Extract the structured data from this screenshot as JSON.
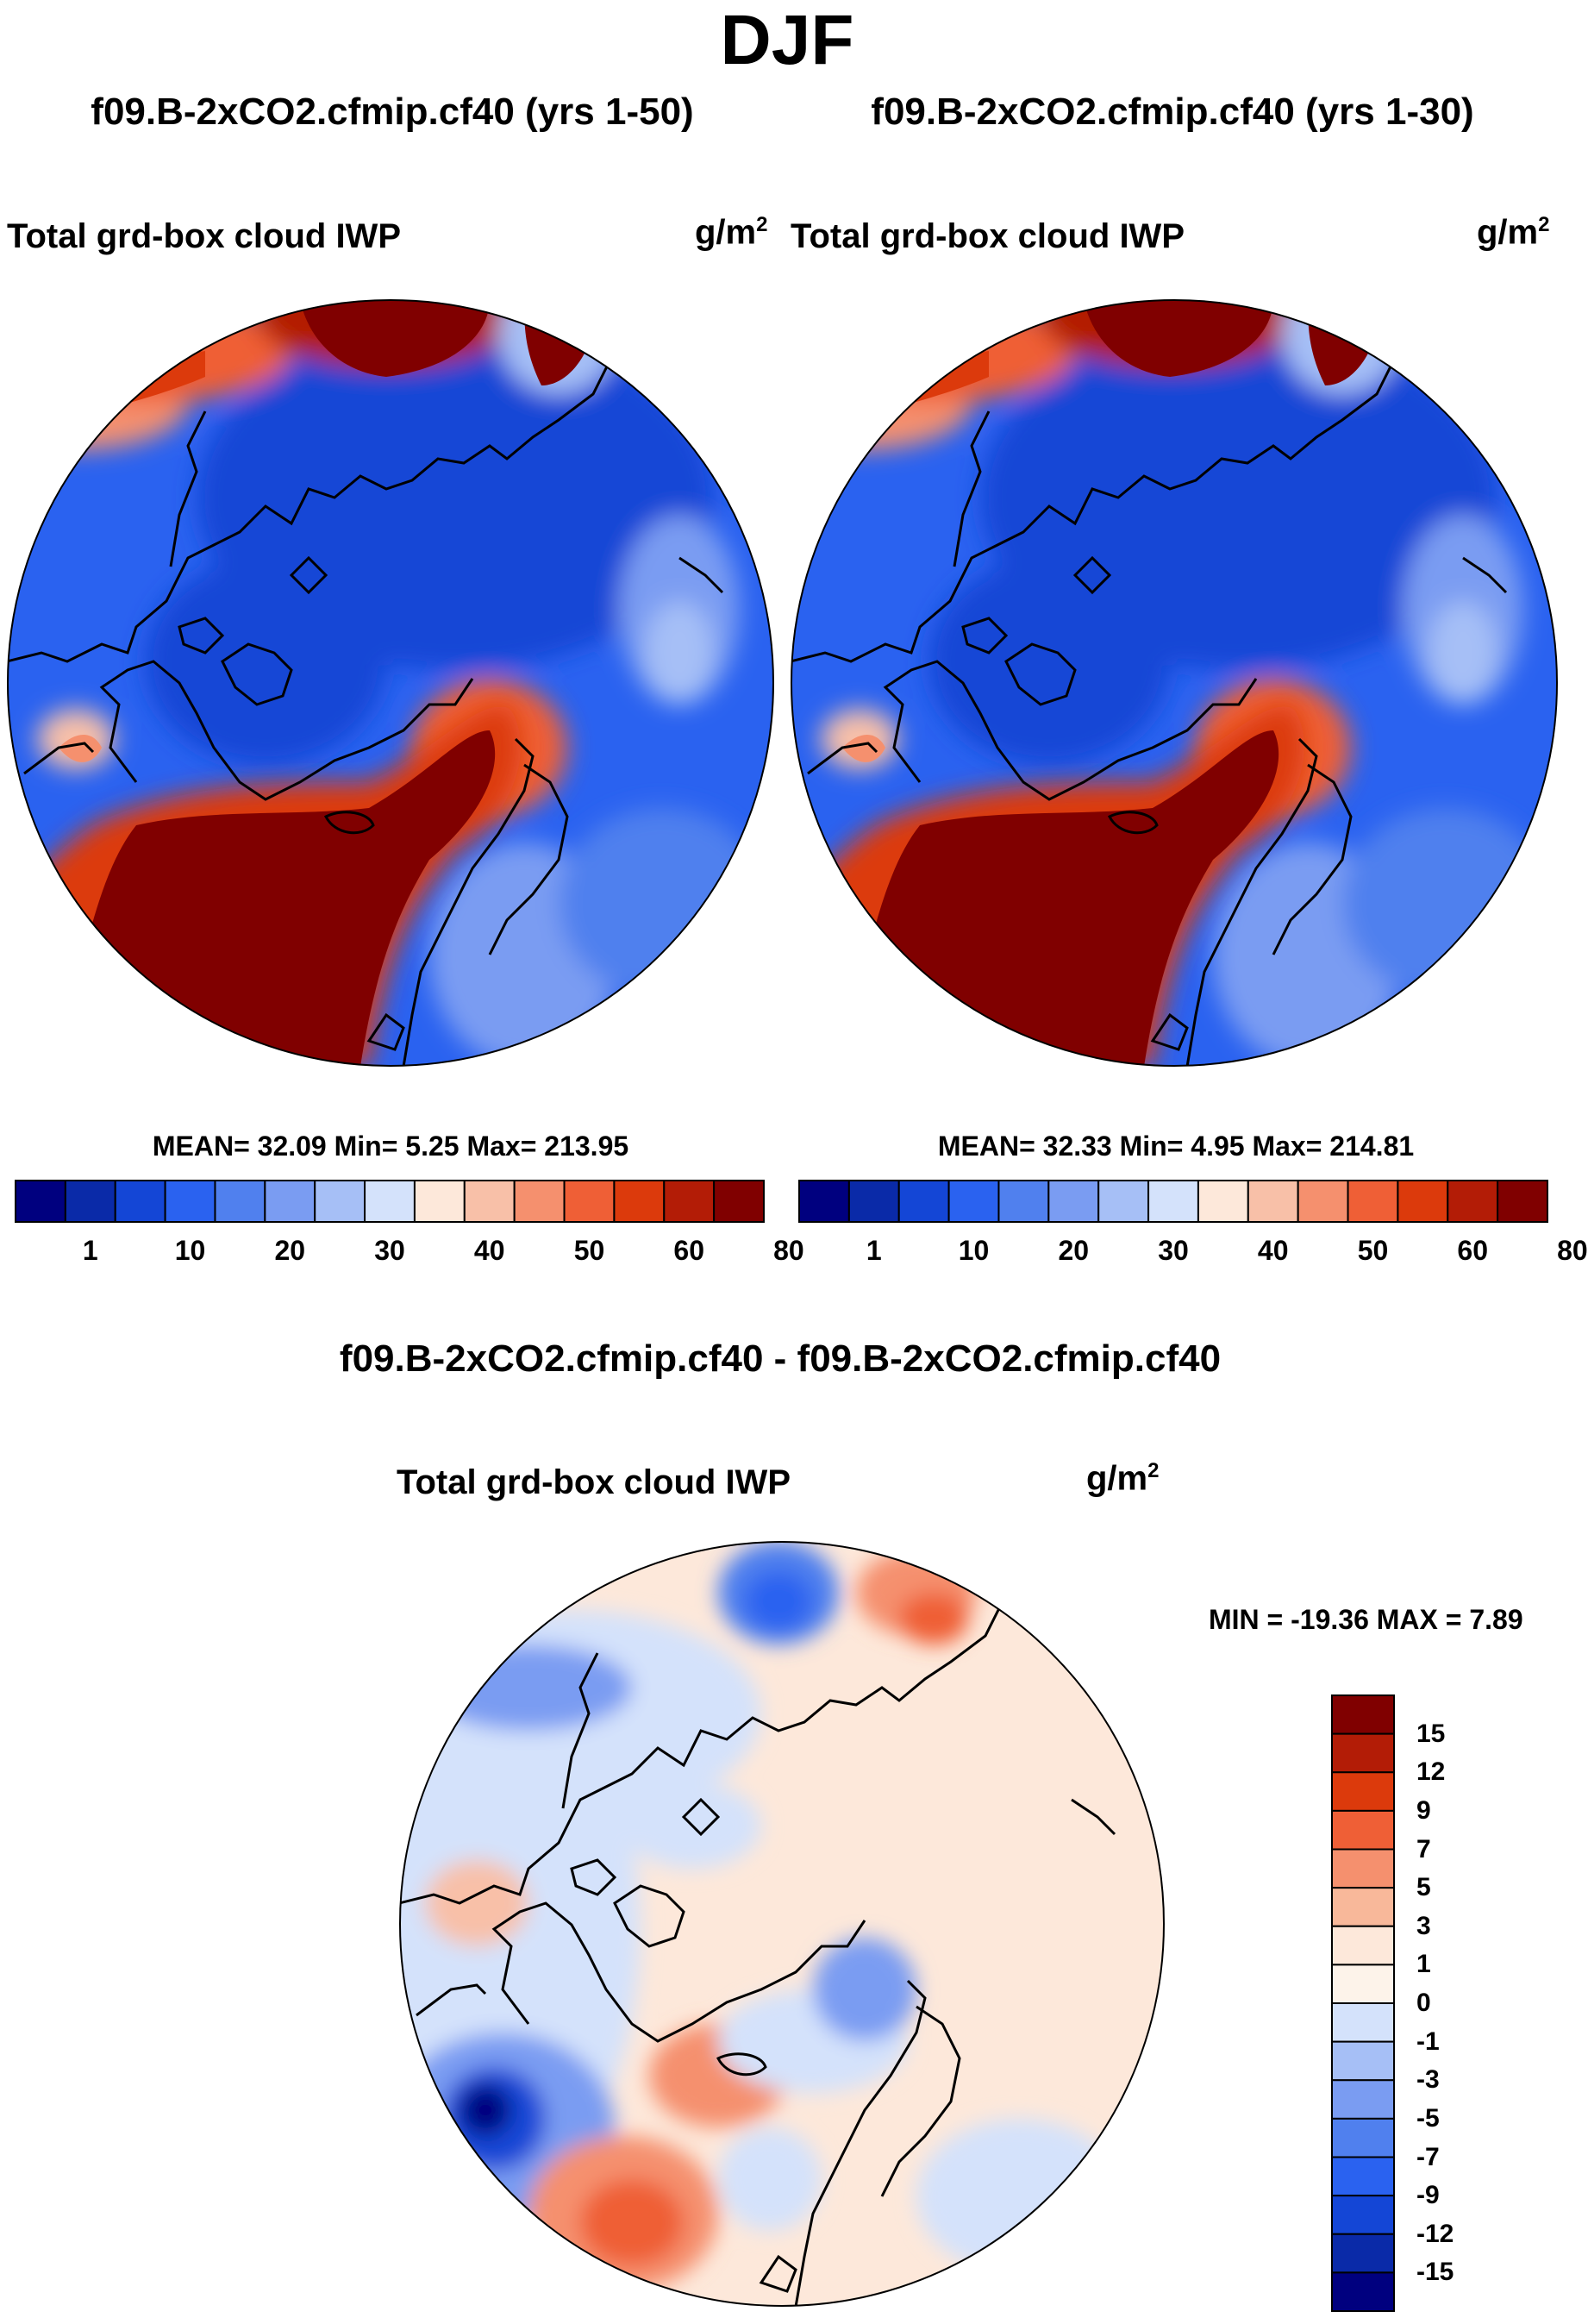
{
  "title": "DJF",
  "panels": [
    {
      "case_title": "f09.B-2xCO2.cfmip.cf40 (yrs 1-50)",
      "variable": "Total grd-box cloud IWP",
      "units_base": "g/m",
      "units_exp": "2",
      "stats": "MEAN=  32.09  Min=    5.25  Max= 213.95"
    },
    {
      "case_title": "f09.B-2xCO2.cfmip.cf40 (yrs 1-30)",
      "variable": "Total grd-box cloud IWP",
      "units_base": "g/m",
      "units_exp": "2",
      "stats": "MEAN=  32.33  Min=    4.95  Max= 214.81"
    }
  ],
  "diff_panel": {
    "case_title": "f09.B-2xCO2.cfmip.cf40 - f09.B-2xCO2.cfmip.cf40",
    "variable": "Total grd-box cloud IWP",
    "units_base": "g/m",
    "units_exp": "2",
    "stats": "MIN = -19.36 MAX =    7.89"
  },
  "chart_data": [
    {
      "type": "heatmap",
      "projection": "north polar stereographic",
      "title": "f09.B-2xCO2.cfmip.cf40 (yrs 1-50)",
      "subtitle": "Total grd-box cloud IWP",
      "units": "g/m^2",
      "mean": 32.09,
      "min": 5.25,
      "max": 213.95,
      "colorbar": {
        "orientation": "horizontal",
        "tick_labels": [
          "1",
          "10",
          "20",
          "30",
          "40",
          "50",
          "60",
          "80"
        ],
        "colors": [
          "#00007f",
          "#0a2aa8",
          "#1446d6",
          "#2a62f0",
          "#5080ee",
          "#7a9cf2",
          "#a6bff6",
          "#d4e2fb",
          "#fde8da",
          "#f8c0a8",
          "#f5906e",
          "#ef5f36",
          "#dc3a0c",
          "#b31c06",
          "#800000"
        ]
      }
    },
    {
      "type": "heatmap",
      "projection": "north polar stereographic",
      "title": "f09.B-2xCO2.cfmip.cf40 (yrs 1-30)",
      "subtitle": "Total grd-box cloud IWP",
      "units": "g/m^2",
      "mean": 32.33,
      "min": 4.95,
      "max": 214.81,
      "colorbar": {
        "orientation": "horizontal",
        "tick_labels": [
          "1",
          "10",
          "20",
          "30",
          "40",
          "50",
          "60",
          "80"
        ],
        "colors": [
          "#00007f",
          "#0a2aa8",
          "#1446d6",
          "#2a62f0",
          "#5080ee",
          "#7a9cf2",
          "#a6bff6",
          "#d4e2fb",
          "#fde8da",
          "#f8c0a8",
          "#f5906e",
          "#ef5f36",
          "#dc3a0c",
          "#b31c06",
          "#800000"
        ]
      }
    },
    {
      "type": "heatmap",
      "projection": "north polar stereographic",
      "title": "f09.B-2xCO2.cfmip.cf40 - f09.B-2xCO2.cfmip.cf40",
      "subtitle": "Total grd-box cloud IWP",
      "units": "g/m^2",
      "min": -19.36,
      "max": 7.89,
      "colorbar": {
        "orientation": "vertical",
        "tick_labels": [
          "15",
          "12",
          "9",
          "7",
          "5",
          "3",
          "1",
          "0",
          "-1",
          "-3",
          "-5",
          "-7",
          "-9",
          "-12",
          "-15"
        ],
        "colors": [
          "#800000",
          "#b31c06",
          "#dc3a0c",
          "#ef5f36",
          "#f5906e",
          "#f8b89a",
          "#fde8da",
          "#fdf3ea",
          "#d4e2fb",
          "#a6bff6",
          "#7a9cf2",
          "#5080ee",
          "#2a62f0",
          "#1446d6",
          "#0a2aa8",
          "#00007f"
        ]
      }
    }
  ]
}
